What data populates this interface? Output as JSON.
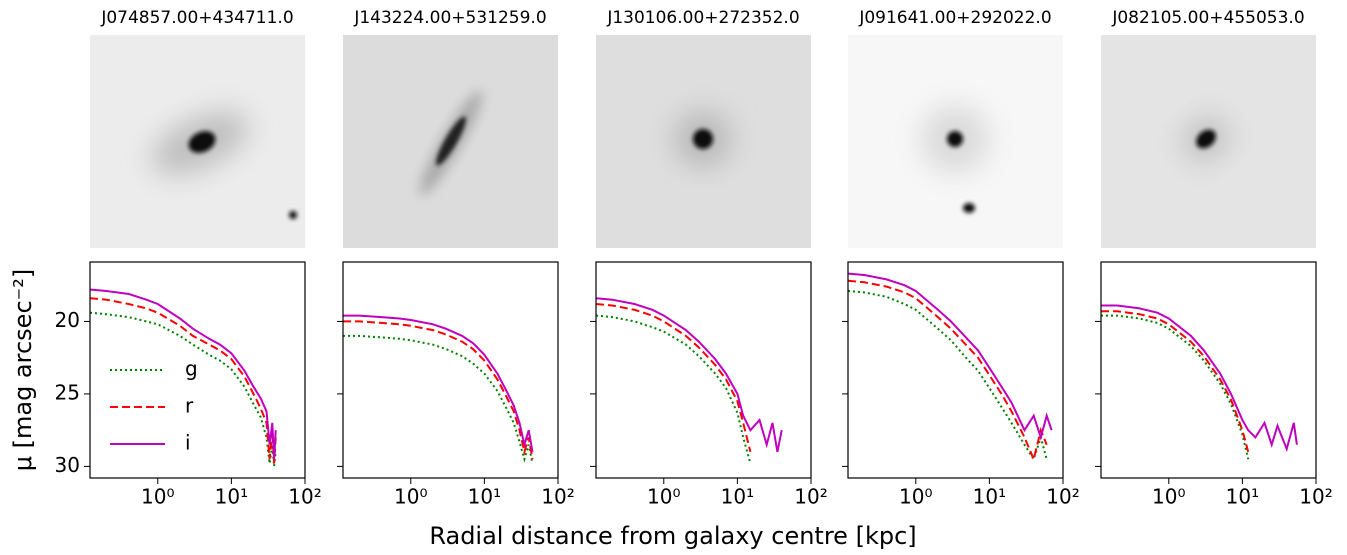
{
  "xlabel": "Radial distance from galaxy centre [kpc]",
  "ylabel": "μ [mag arcsec⁻²]",
  "chart_data": [
    {
      "type": "line",
      "title": "J074857.00+434711.0",
      "xscale": "log",
      "legend": "center left",
      "xlim": [
        0.12,
        100
      ],
      "ylim": [
        30.8,
        15.9
      ],
      "show_ytick_labels": true,
      "xticks": [
        {
          "value": 1,
          "label": "10⁰"
        },
        {
          "value": 10,
          "label": "10¹"
        },
        {
          "value": 100,
          "label": "10²"
        }
      ],
      "yticks": [
        20,
        25,
        30
      ],
      "x": [
        0.12,
        0.2,
        0.4,
        0.7,
        1,
        2,
        3,
        5,
        7,
        10,
        15,
        20,
        25,
        30,
        33,
        36,
        38,
        40
      ],
      "series": [
        {
          "name": "g",
          "color": "#008000",
          "linestyle": "dotted",
          "values": [
            19.4,
            19.5,
            19.7,
            20.0,
            20.2,
            21.0,
            21.6,
            22.3,
            22.7,
            23.3,
            24.5,
            25.7,
            26.6,
            28.0,
            29.8,
            28.5,
            30.0,
            29.0
          ]
        },
        {
          "name": "r",
          "color": "#ff0000",
          "linestyle": "dashed",
          "values": [
            18.4,
            18.5,
            18.8,
            19.1,
            19.4,
            20.3,
            21.0,
            21.6,
            22.0,
            22.6,
            23.8,
            25.0,
            26.0,
            27.0,
            29.5,
            27.5,
            29.8,
            28.0
          ]
        },
        {
          "name": "i",
          "color": "#bf00bf",
          "linestyle": "solid",
          "values": [
            17.8,
            17.9,
            18.1,
            18.5,
            18.8,
            19.8,
            20.5,
            21.2,
            21.6,
            22.2,
            23.4,
            24.5,
            25.3,
            26.2,
            28.5,
            27.0,
            29.5,
            27.5
          ]
        }
      ]
    },
    {
      "type": "line",
      "title": "J143224.00+531259.0",
      "xscale": "log",
      "xlim": [
        0.12,
        100
      ],
      "ylim": [
        30.8,
        15.9
      ],
      "show_ytick_labels": false,
      "xticks": [
        {
          "value": 1,
          "label": "10⁰"
        },
        {
          "value": 10,
          "label": "10¹"
        },
        {
          "value": 100,
          "label": "10²"
        }
      ],
      "yticks": [
        20,
        25,
        30
      ],
      "x": [
        0.12,
        0.2,
        0.4,
        0.7,
        1,
        2,
        3,
        5,
        7,
        10,
        15,
        20,
        25,
        30,
        35,
        40,
        45
      ],
      "series": [
        {
          "name": "g",
          "color": "#008000",
          "linestyle": "dotted",
          "values": [
            21.0,
            21.0,
            21.1,
            21.2,
            21.3,
            21.6,
            21.9,
            22.4,
            22.9,
            23.6,
            24.8,
            26.0,
            27.0,
            28.3,
            29.5,
            28.5,
            29.8
          ]
        },
        {
          "name": "r",
          "color": "#ff0000",
          "linestyle": "dashed",
          "values": [
            20.0,
            20.0,
            20.1,
            20.2,
            20.3,
            20.6,
            20.9,
            21.4,
            21.9,
            22.7,
            24.0,
            25.2,
            26.2,
            27.5,
            29.0,
            28.0,
            29.5
          ]
        },
        {
          "name": "i",
          "color": "#bf00bf",
          "linestyle": "solid",
          "values": [
            19.6,
            19.6,
            19.7,
            19.8,
            19.9,
            20.2,
            20.5,
            21.0,
            21.5,
            22.3,
            23.6,
            24.8,
            25.8,
            27.0,
            28.5,
            27.5,
            29.0
          ]
        }
      ]
    },
    {
      "type": "line",
      "title": "J130106.00+272352.0",
      "xscale": "log",
      "xlim": [
        0.12,
        100
      ],
      "ylim": [
        30.8,
        15.9
      ],
      "show_ytick_labels": false,
      "xticks": [
        {
          "value": 1,
          "label": "10⁰"
        },
        {
          "value": 10,
          "label": "10¹"
        },
        {
          "value": 100,
          "label": "10²"
        }
      ],
      "yticks": [
        20,
        25,
        30
      ],
      "x": [
        0.12,
        0.2,
        0.4,
        0.7,
        1,
        2,
        3,
        5,
        7,
        10,
        12,
        15,
        20,
        25,
        30,
        35,
        40
      ],
      "series": [
        {
          "name": "g",
          "color": "#008000",
          "linestyle": "dotted",
          "values": [
            19.6,
            19.7,
            20.0,
            20.4,
            20.7,
            21.6,
            22.4,
            23.6,
            24.6,
            26.3,
            28.0,
            29.8,
            null,
            null,
            null,
            null,
            null
          ]
        },
        {
          "name": "r",
          "color": "#ff0000",
          "linestyle": "dashed",
          "values": [
            18.8,
            18.9,
            19.2,
            19.6,
            20.0,
            21.0,
            21.8,
            23.0,
            24.0,
            25.5,
            27.0,
            29.0,
            null,
            null,
            null,
            null,
            null
          ]
        },
        {
          "name": "i",
          "color": "#bf00bf",
          "linestyle": "solid",
          "values": [
            18.4,
            18.5,
            18.8,
            19.2,
            19.6,
            20.6,
            21.4,
            22.6,
            23.6,
            25.0,
            26.5,
            27.5,
            26.8,
            28.5,
            27.0,
            29.0,
            27.5
          ]
        }
      ]
    },
    {
      "type": "line",
      "title": "J091641.00+292022.0",
      "xscale": "log",
      "xlim": [
        0.12,
        100
      ],
      "ylim": [
        30.8,
        15.9
      ],
      "show_ytick_labels": false,
      "xticks": [
        {
          "value": 1,
          "label": "10⁰"
        },
        {
          "value": 10,
          "label": "10¹"
        },
        {
          "value": 100,
          "label": "10²"
        }
      ],
      "yticks": [
        20,
        25,
        30
      ],
      "x": [
        0.12,
        0.2,
        0.4,
        0.7,
        1,
        2,
        3,
        5,
        7,
        10,
        15,
        20,
        30,
        40,
        50,
        60,
        70
      ],
      "series": [
        {
          "name": "g",
          "color": "#008000",
          "linestyle": "dotted",
          "values": [
            17.9,
            18.0,
            18.3,
            18.8,
            19.2,
            20.5,
            21.3,
            22.6,
            23.4,
            24.6,
            26.0,
            27.0,
            28.5,
            29.5,
            28.0,
            29.5,
            null
          ]
        },
        {
          "name": "r",
          "color": "#ff0000",
          "linestyle": "dashed",
          "values": [
            17.2,
            17.3,
            17.6,
            18.0,
            18.4,
            19.7,
            20.5,
            21.7,
            22.5,
            23.7,
            25.1,
            26.2,
            28.0,
            29.5,
            27.5,
            28.5,
            null
          ]
        },
        {
          "name": "i",
          "color": "#bf00bf",
          "linestyle": "solid",
          "values": [
            16.7,
            16.8,
            17.1,
            17.5,
            17.9,
            19.2,
            20.0,
            21.2,
            22.0,
            23.2,
            24.6,
            25.6,
            27.5,
            26.5,
            28.0,
            26.5,
            27.5
          ]
        }
      ]
    },
    {
      "type": "line",
      "title": "J082105.00+455053.0",
      "xscale": "log",
      "xlim": [
        0.12,
        100
      ],
      "ylim": [
        30.8,
        15.9
      ],
      "show_ytick_labels": false,
      "xticks": [
        {
          "value": 1,
          "label": "10⁰"
        },
        {
          "value": 10,
          "label": "10¹"
        },
        {
          "value": 100,
          "label": "10²"
        }
      ],
      "yticks": [
        20,
        25,
        30
      ],
      "x": [
        0.12,
        0.2,
        0.4,
        0.7,
        1,
        2,
        3,
        5,
        7,
        10,
        12,
        15,
        20,
        25,
        30,
        40,
        50,
        55
      ],
      "series": [
        {
          "name": "g",
          "color": "#008000",
          "linestyle": "dotted",
          "values": [
            19.6,
            19.6,
            19.8,
            20.1,
            20.5,
            21.7,
            22.7,
            24.3,
            25.7,
            27.8,
            29.5,
            null,
            null,
            null,
            null,
            null,
            null,
            null
          ]
        },
        {
          "name": "r",
          "color": "#ff0000",
          "linestyle": "dashed",
          "values": [
            19.3,
            19.3,
            19.5,
            19.8,
            20.2,
            21.4,
            22.4,
            24.0,
            25.4,
            27.5,
            29.0,
            null,
            null,
            null,
            null,
            null,
            null,
            null
          ]
        },
        {
          "name": "i",
          "color": "#bf00bf",
          "linestyle": "solid",
          "values": [
            18.9,
            18.9,
            19.1,
            19.4,
            19.8,
            21.0,
            22.0,
            23.6,
            25.0,
            26.8,
            27.5,
            28.0,
            27.0,
            28.5,
            27.2,
            28.8,
            27.0,
            28.5
          ]
        }
      ]
    }
  ]
}
